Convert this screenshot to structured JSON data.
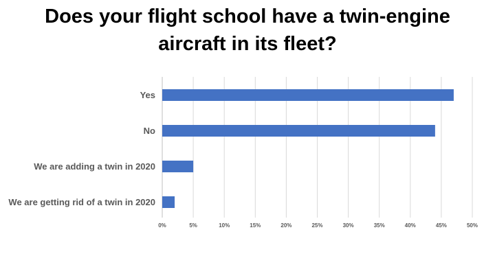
{
  "chart_data": {
    "type": "bar",
    "orientation": "horizontal",
    "title_lines": [
      "Does your flight school have a twin-engine",
      "aircraft in its fleet?"
    ],
    "categories": [
      "Yes",
      "No",
      "We are adding a twin in 2020",
      "We are getting rid of a twin in 2020"
    ],
    "values": [
      47,
      44,
      5,
      2
    ],
    "xlim": [
      0,
      50
    ],
    "xticks": [
      0,
      5,
      10,
      15,
      20,
      25,
      30,
      35,
      40,
      45,
      50
    ],
    "xtick_labels": [
      "0%",
      "5%",
      "10%",
      "15%",
      "20%",
      "25%",
      "30%",
      "35%",
      "40%",
      "45%",
      "50%"
    ],
    "xlabel": "",
    "ylabel": "",
    "grid": "vertical",
    "legend": "none",
    "bar_color": "#4472c4",
    "grid_color": "#d9d9d9"
  }
}
